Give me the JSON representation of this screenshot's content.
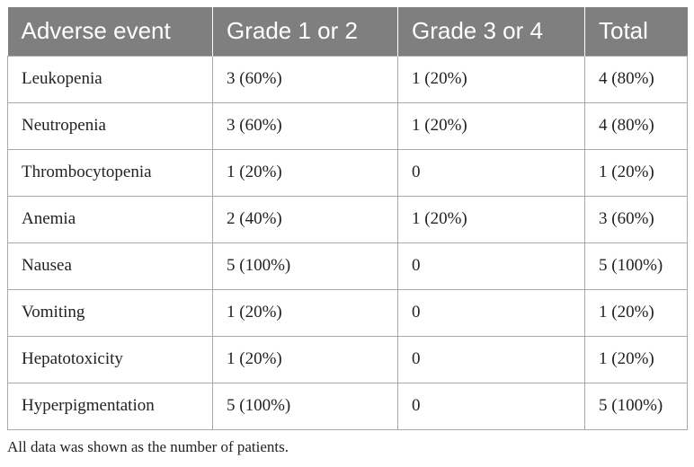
{
  "table": {
    "headers": [
      "Adverse event",
      "Grade 1 or 2",
      "Grade 3 or 4",
      "Total"
    ],
    "rows": [
      [
        "Leukopenia",
        "3 (60%)",
        "1 (20%)",
        "4 (80%)"
      ],
      [
        "Neutropenia",
        "3 (60%)",
        "1 (20%)",
        "4 (80%)"
      ],
      [
        "Thrombocytopenia",
        "1 (20%)",
        "0",
        "1 (20%)"
      ],
      [
        "Anemia",
        "2 (40%)",
        "1 (20%)",
        "3 (60%)"
      ],
      [
        "Nausea",
        "5 (100%)",
        "0",
        "5 (100%)"
      ],
      [
        "Vomiting",
        "1 (20%)",
        "0",
        "1 (20%)"
      ],
      [
        "Hepatotoxicity",
        "1 (20%)",
        "0",
        "1 (20%)"
      ],
      [
        "Hyperpigmentation",
        "5 (100%)",
        "0",
        "5 (100%)"
      ]
    ]
  },
  "footnote": "All data was shown as the number of patients.",
  "colors": {
    "header_background": "#7f7f7f",
    "header_text": "#ffffff",
    "grid_lines": "#a9a9a9",
    "body_text": "#222222"
  }
}
